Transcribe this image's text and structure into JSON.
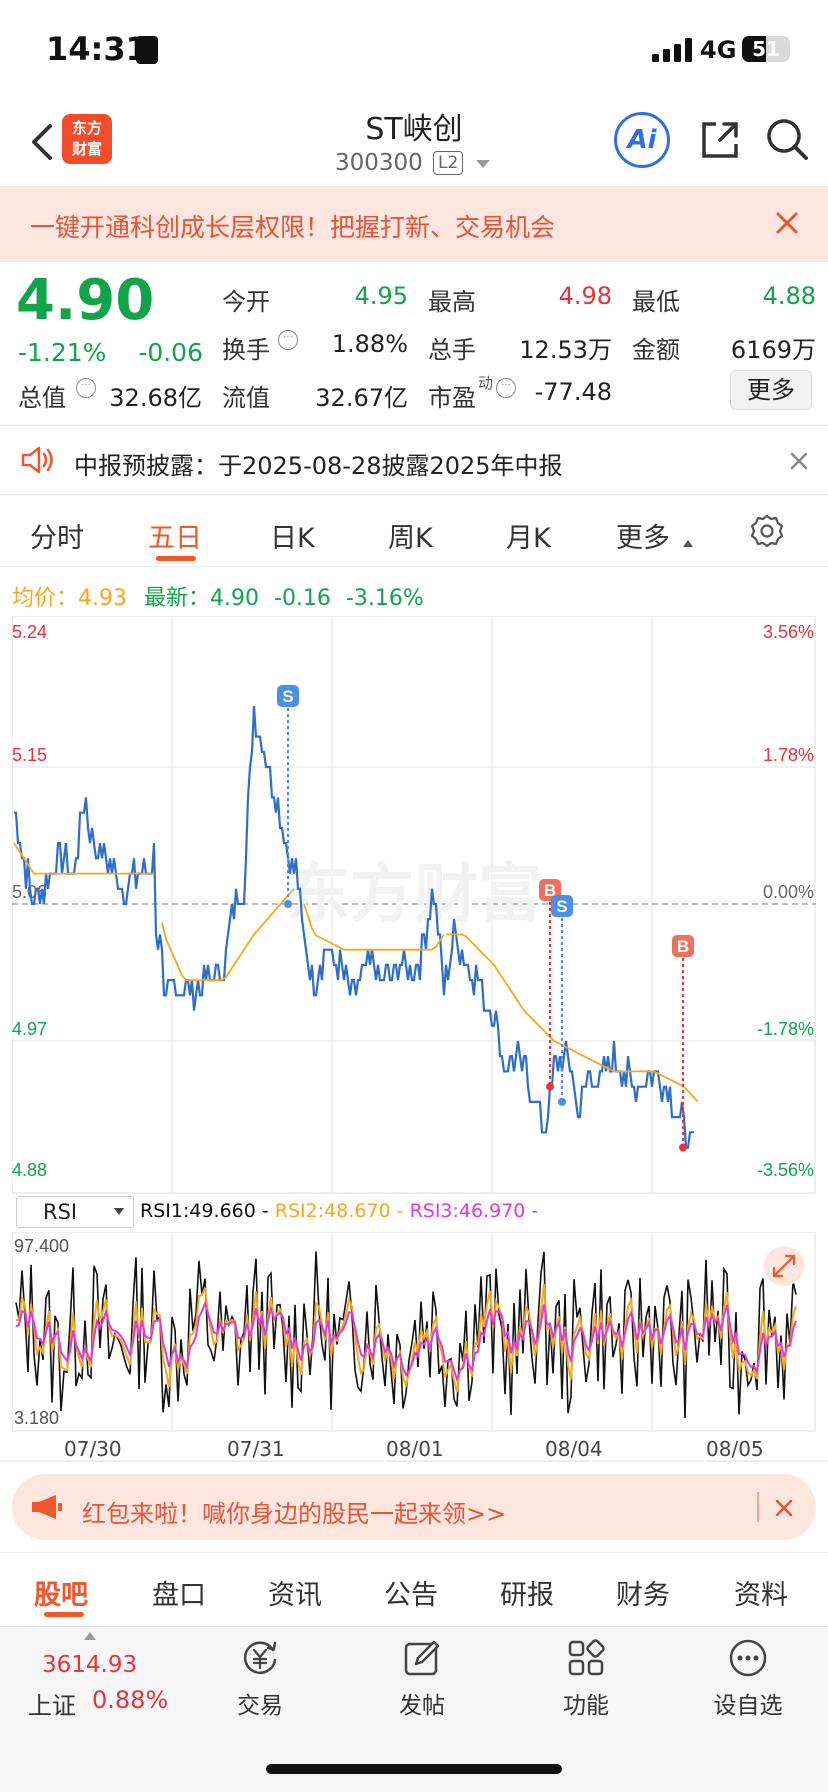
{
  "status_bar": {
    "time": "14:31",
    "network": "4G",
    "battery": "51",
    "battery_level": 0.51
  },
  "header": {
    "stock_name": "ST峡创",
    "stock_code": "300300",
    "level_badge": "L2",
    "logo_text": "东方财富",
    "ai_label": "Ai"
  },
  "banner": {
    "text": "一键开通科创成长层权限！把握打新、交易机会"
  },
  "quote": {
    "price": "4.90",
    "change_pct": "-1.21%",
    "change": "-0.06",
    "open_label": "今开",
    "open": "4.95",
    "high_label": "最高",
    "high": "4.98",
    "low_label": "最低",
    "low": "4.88",
    "turnover_label": "换手",
    "turnover": "1.88%",
    "volume_label": "总手",
    "volume": "12.53万",
    "amount_label": "金额",
    "amount": "6169万",
    "mktcap_label": "总值",
    "mktcap": "32.68亿",
    "float_label": "流值",
    "float_cap": "32.67亿",
    "pe_label": "市盈",
    "pe_sup": "动",
    "pe": "-77.48",
    "more_label": "更多"
  },
  "notice": {
    "text": "中报预披露：于2025-08-28披露2025年中报"
  },
  "tabs": [
    "分时",
    "五日",
    "日K",
    "周K",
    "月K",
    "更多"
  ],
  "active_tab": "五日",
  "chart_header": {
    "avg_label": "均价：",
    "avg": "4.93",
    "latest_label": "最新：",
    "latest": "4.90",
    "latest_chg": "-0.16",
    "latest_pct": "-3.16%"
  },
  "chart_data": [
    {
      "type": "line",
      "series": [
        {
          "name": "price",
          "color": "#2f6ec6"
        },
        {
          "name": "均价",
          "color": "#f4a81d"
        }
      ],
      "y_ticks_left": [
        "5.24",
        "5.15",
        "5.06",
        "4.97",
        "4.88"
      ],
      "y_ticks_right": [
        "3.56%",
        "1.78%",
        "0.00%",
        "-1.78%",
        "-3.56%"
      ],
      "ylim": [
        4.88,
        5.24
      ],
      "x_ticks": [
        "07/30",
        "07/31",
        "08/01",
        "08/04",
        "08/05"
      ],
      "markers": [
        "S",
        "B",
        "S",
        "B"
      ],
      "price_anchor": [
        [
          0,
          5.12
        ],
        [
          10,
          5.09
        ],
        [
          20,
          5.06
        ],
        [
          30,
          5.07
        ],
        [
          45,
          5.09
        ],
        [
          60,
          5.08
        ],
        [
          70,
          5.13
        ],
        [
          80,
          5.1
        ],
        [
          90,
          5.09
        ],
        [
          110,
          5.07
        ],
        [
          125,
          5.08
        ],
        [
          140,
          5.09
        ],
        [
          142,
          5.05
        ],
        [
          148,
          5.02
        ],
        [
          150,
          4.99
        ],
        [
          160,
          5.01
        ],
        [
          175,
          5.0
        ],
        [
          195,
          5.01
        ],
        [
          210,
          5.02
        ],
        [
          220,
          5.06
        ],
        [
          230,
          5.07
        ],
        [
          240,
          5.19
        ],
        [
          250,
          5.16
        ],
        [
          262,
          5.13
        ],
        [
          275,
          5.09
        ],
        [
          282,
          5.08
        ],
        [
          290,
          5.04
        ],
        [
          300,
          5.01
        ],
        [
          312,
          5.03
        ],
        [
          325,
          5.02
        ],
        [
          340,
          5.0
        ],
        [
          355,
          5.02
        ],
        [
          370,
          5.01
        ],
        [
          390,
          5.02
        ],
        [
          405,
          5.02
        ],
        [
          420,
          5.07
        ],
        [
          430,
          5.0
        ],
        [
          440,
          5.04
        ],
        [
          455,
          5.02
        ],
        [
          470,
          5.0
        ],
        [
          482,
          4.98
        ],
        [
          492,
          4.95
        ],
        [
          500,
          4.96
        ],
        [
          512,
          4.95
        ],
        [
          522,
          4.93
        ],
        [
          530,
          4.91
        ],
        [
          540,
          4.95
        ],
        [
          550,
          4.96
        ],
        [
          558,
          4.95
        ],
        [
          565,
          4.92
        ],
        [
          575,
          4.95
        ],
        [
          585,
          4.94
        ],
        [
          600,
          4.96
        ],
        [
          620,
          4.94
        ],
        [
          640,
          4.95
        ],
        [
          660,
          4.93
        ],
        [
          672,
          4.91
        ],
        [
          680,
          4.9
        ]
      ],
      "avg_anchor": [
        [
          0,
          5.1
        ],
        [
          20,
          5.08
        ],
        [
          60,
          5.08
        ],
        [
          140,
          5.08
        ],
        [
          150,
          5.04
        ],
        [
          170,
          5.01
        ],
        [
          210,
          5.01
        ],
        [
          240,
          5.04
        ],
        [
          280,
          5.07
        ],
        [
          290,
          5.06
        ],
        [
          300,
          5.04
        ],
        [
          330,
          5.03
        ],
        [
          380,
          5.03
        ],
        [
          420,
          5.03
        ],
        [
          430,
          5.04
        ],
        [
          450,
          5.04
        ],
        [
          480,
          5.02
        ],
        [
          510,
          4.99
        ],
        [
          540,
          4.97
        ],
        [
          570,
          4.96
        ],
        [
          600,
          4.95
        ],
        [
          640,
          4.95
        ],
        [
          670,
          4.94
        ],
        [
          684,
          4.93
        ]
      ]
    },
    {
      "type": "line",
      "name": "RSI",
      "series": [
        {
          "name": "RSI1",
          "value": "49.660",
          "color": "#111111"
        },
        {
          "name": "RSI2",
          "value": "48.670",
          "color": "#f4a81d"
        },
        {
          "name": "RSI3",
          "value": "46.970",
          "color": "#e03ad8"
        }
      ],
      "y_ticks": [
        "97.400",
        "3.180"
      ],
      "ylim": [
        3.18,
        97.4
      ]
    }
  ],
  "rsi": {
    "selector": "RSI",
    "rsi1_label": "RSI1:49.660 -",
    "rsi2_label": "RSI2:48.670 -",
    "rsi3_label": "RSI3:46.970 -"
  },
  "red_packet": {
    "text": "红包来啦！喊你身边的股民一起来领>>"
  },
  "bottom_tabs": [
    "股吧",
    "盘口",
    "资讯",
    "公告",
    "研报",
    "财务",
    "资料"
  ],
  "active_bottom_tab": "股吧",
  "index": {
    "value": "3614.93",
    "name": "上证",
    "pct": "0.88%"
  },
  "nav": [
    {
      "label": "交易",
      "icon": "yuan-cycle-icon"
    },
    {
      "label": "发帖",
      "icon": "edit-icon"
    },
    {
      "label": "功能",
      "icon": "grid-icon"
    },
    {
      "label": "设自选",
      "icon": "more-dots-icon"
    }
  ],
  "colors": {
    "up": "#e8333a",
    "down": "#13a34a",
    "accent": "#f1562d"
  }
}
